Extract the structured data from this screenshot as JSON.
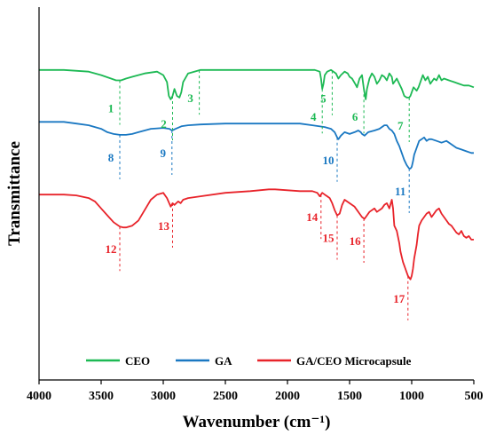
{
  "chart_data": {
    "type": "line",
    "xlabel": "Wavenumber (cm⁻¹)",
    "ylabel": "Transmittance",
    "x_ticks": [
      4000,
      3500,
      3000,
      2500,
      2000,
      1500,
      1000,
      500
    ],
    "x_tick_labels": [
      "4000",
      "3500",
      "3000",
      "2500",
      "2000",
      "1500",
      "1000",
      "500"
    ],
    "xlim": [
      4000,
      500
    ],
    "x_reversed": true,
    "y_ticks_shown": false,
    "grid": false,
    "legend_position": "bottom",
    "series": [
      {
        "name": "CEO",
        "color": "#1db954",
        "x": [
          4000,
          3800,
          3600,
          3500,
          3420,
          3380,
          3340,
          3300,
          3250,
          3150,
          3050,
          3000,
          2970,
          2955,
          2940,
          2925,
          2910,
          2890,
          2870,
          2855,
          2840,
          2800,
          2750,
          2700,
          2500,
          2200,
          2000,
          1850,
          1780,
          1740,
          1730,
          1720,
          1710,
          1700,
          1680,
          1650,
          1610,
          1590,
          1570,
          1540,
          1515,
          1500,
          1480,
          1455,
          1440,
          1420,
          1400,
          1385,
          1370,
          1360,
          1340,
          1320,
          1300,
          1280,
          1260,
          1240,
          1220,
          1200,
          1180,
          1160,
          1150,
          1120,
          1100,
          1080,
          1060,
          1040,
          1020,
          1010,
          1000,
          985,
          960,
          945,
          930,
          910,
          890,
          870,
          850,
          820,
          800,
          780,
          760,
          740,
          700,
          660,
          620,
          580,
          540,
          500
        ],
        "values": [
          0.25,
          0.25,
          0.26,
          0.28,
          0.3,
          0.31,
          0.31,
          0.3,
          0.29,
          0.27,
          0.26,
          0.28,
          0.32,
          0.4,
          0.42,
          0.4,
          0.36,
          0.4,
          0.41,
          0.38,
          0.32,
          0.27,
          0.26,
          0.25,
          0.25,
          0.25,
          0.25,
          0.25,
          0.25,
          0.26,
          0.3,
          0.36,
          0.33,
          0.28,
          0.26,
          0.25,
          0.27,
          0.3,
          0.28,
          0.26,
          0.27,
          0.29,
          0.3,
          0.33,
          0.35,
          0.3,
          0.28,
          0.36,
          0.42,
          0.36,
          0.3,
          0.27,
          0.29,
          0.33,
          0.31,
          0.28,
          0.29,
          0.31,
          0.27,
          0.29,
          0.33,
          0.3,
          0.33,
          0.36,
          0.4,
          0.41,
          0.41,
          0.4,
          0.38,
          0.35,
          0.37,
          0.35,
          0.32,
          0.28,
          0.31,
          0.29,
          0.33,
          0.3,
          0.31,
          0.28,
          0.31,
          0.3,
          0.31,
          0.32,
          0.33,
          0.34,
          0.34,
          0.35
        ]
      },
      {
        "name": "GA",
        "color": "#1a78c2",
        "x": [
          4000,
          3800,
          3700,
          3600,
          3500,
          3450,
          3400,
          3350,
          3300,
          3250,
          3200,
          3100,
          3000,
          2950,
          2930,
          2900,
          2850,
          2800,
          2700,
          2500,
          2300,
          2100,
          1900,
          1800,
          1700,
          1650,
          1620,
          1600,
          1590,
          1570,
          1540,
          1500,
          1460,
          1430,
          1410,
          1400,
          1380,
          1350,
          1300,
          1260,
          1240,
          1220,
          1200,
          1180,
          1160,
          1140,
          1120,
          1100,
          1080,
          1060,
          1040,
          1030,
          1020,
          1010,
          1000,
          990,
          980,
          960,
          940,
          920,
          900,
          880,
          860,
          840,
          800,
          760,
          720,
          680,
          640,
          600,
          560,
          520,
          500
        ],
        "values": [
          0.55,
          0.55,
          0.56,
          0.57,
          0.59,
          0.61,
          0.62,
          0.625,
          0.625,
          0.62,
          0.61,
          0.59,
          0.585,
          0.59,
          0.6,
          0.59,
          0.575,
          0.57,
          0.565,
          0.56,
          0.56,
          0.56,
          0.56,
          0.57,
          0.58,
          0.59,
          0.61,
          0.64,
          0.65,
          0.63,
          0.61,
          0.62,
          0.61,
          0.6,
          0.61,
          0.62,
          0.63,
          0.61,
          0.6,
          0.59,
          0.58,
          0.57,
          0.57,
          0.59,
          0.6,
          0.62,
          0.66,
          0.69,
          0.73,
          0.77,
          0.8,
          0.81,
          0.82,
          0.82,
          0.81,
          0.78,
          0.74,
          0.7,
          0.66,
          0.65,
          0.64,
          0.66,
          0.65,
          0.65,
          0.66,
          0.67,
          0.66,
          0.68,
          0.7,
          0.71,
          0.72,
          0.73,
          0.73
        ]
      },
      {
        "name": "GA/CEO Microcapsule",
        "color": "#e8232a",
        "x": [
          4000,
          3800,
          3700,
          3600,
          3550,
          3500,
          3450,
          3400,
          3350,
          3320,
          3300,
          3250,
          3200,
          3150,
          3100,
          3050,
          3000,
          2970,
          2940,
          2925,
          2910,
          2880,
          2860,
          2840,
          2800,
          2700,
          2500,
          2300,
          2150,
          2100,
          2000,
          1900,
          1800,
          1760,
          1740,
          1720,
          1700,
          1680,
          1660,
          1640,
          1620,
          1600,
          1580,
          1560,
          1540,
          1500,
          1460,
          1440,
          1420,
          1400,
          1380,
          1360,
          1340,
          1320,
          1300,
          1280,
          1260,
          1240,
          1220,
          1200,
          1180,
          1160,
          1150,
          1140,
          1120,
          1100,
          1090,
          1080,
          1070,
          1060,
          1050,
          1040,
          1030,
          1020,
          1010,
          1000,
          990,
          980,
          960,
          950,
          940,
          920,
          900,
          880,
          860,
          840,
          820,
          800,
          780,
          760,
          740,
          720,
          700,
          680,
          660,
          640,
          620,
          600,
          580,
          560,
          540,
          520,
          500
        ],
        "values": [
          0.97,
          0.97,
          0.975,
          0.99,
          1.01,
          1.05,
          1.09,
          1.13,
          1.155,
          1.16,
          1.16,
          1.15,
          1.12,
          1.06,
          1.0,
          0.97,
          0.96,
          0.99,
          1.04,
          1.02,
          1.03,
          1.01,
          1.02,
          1.0,
          0.99,
          0.98,
          0.96,
          0.95,
          0.94,
          0.94,
          0.945,
          0.95,
          0.95,
          0.96,
          0.98,
          0.96,
          0.97,
          0.98,
          0.99,
          1.02,
          1.06,
          1.09,
          1.08,
          1.03,
          1.0,
          1.02,
          1.04,
          1.06,
          1.08,
          1.1,
          1.11,
          1.09,
          1.07,
          1.06,
          1.05,
          1.07,
          1.06,
          1.05,
          1.03,
          1.02,
          1.05,
          1.0,
          1.05,
          1.15,
          1.18,
          1.25,
          1.3,
          1.33,
          1.36,
          1.38,
          1.4,
          1.42,
          1.44,
          1.45,
          1.46,
          1.44,
          1.4,
          1.34,
          1.26,
          1.2,
          1.15,
          1.12,
          1.1,
          1.08,
          1.07,
          1.1,
          1.08,
          1.06,
          1.05,
          1.08,
          1.1,
          1.12,
          1.14,
          1.15,
          1.17,
          1.19,
          1.2,
          1.18,
          1.21,
          1.22,
          1.21,
          1.23,
          1.23
        ]
      }
    ],
    "peak_labels": [
      {
        "text": "1",
        "x": 3350,
        "color": "#1db954",
        "line_color": "#1db954"
      },
      {
        "text": "2",
        "x": 2925,
        "color": "#1db954",
        "line_color": "#1db954"
      },
      {
        "text": "3",
        "x": 2710,
        "color": "#1db954",
        "line_color": "#1db954"
      },
      {
        "text": "4",
        "x": 1720,
        "color": "#1db954",
        "line_color": "#1db954"
      },
      {
        "text": "5",
        "x": 1640,
        "color": "#1db954",
        "line_color": "#1db954"
      },
      {
        "text": "6",
        "x": 1385,
        "color": "#1db954",
        "line_color": "#1db954"
      },
      {
        "text": "7",
        "x": 1020,
        "color": "#1db954",
        "line_color": "#1db954"
      },
      {
        "text": "8",
        "x": 3350,
        "color": "#1a78c2",
        "line_color": "#1a78c2"
      },
      {
        "text": "9",
        "x": 2930,
        "color": "#1a78c2",
        "line_color": "#1a78c2"
      },
      {
        "text": "10",
        "x": 1600,
        "color": "#1a78c2",
        "line_color": "#1a78c2"
      },
      {
        "text": "11",
        "x": 1020,
        "color": "#1a78c2",
        "line_color": "#1a78c2"
      },
      {
        "text": "12",
        "x": 3350,
        "color": "#e8232a",
        "line_color": "#e8232a"
      },
      {
        "text": "13",
        "x": 2925,
        "color": "#e8232a",
        "line_color": "#e8232a"
      },
      {
        "text": "14",
        "x": 1730,
        "color": "#e8232a",
        "line_color": "#e8232a"
      },
      {
        "text": "15",
        "x": 1600,
        "color": "#e8232a",
        "line_color": "#e8232a"
      },
      {
        "text": "16",
        "x": 1385,
        "color": "#e8232a",
        "line_color": "#e8232a"
      },
      {
        "text": "17",
        "x": 1030,
        "color": "#e8232a",
        "line_color": "#e8232a"
      }
    ]
  }
}
